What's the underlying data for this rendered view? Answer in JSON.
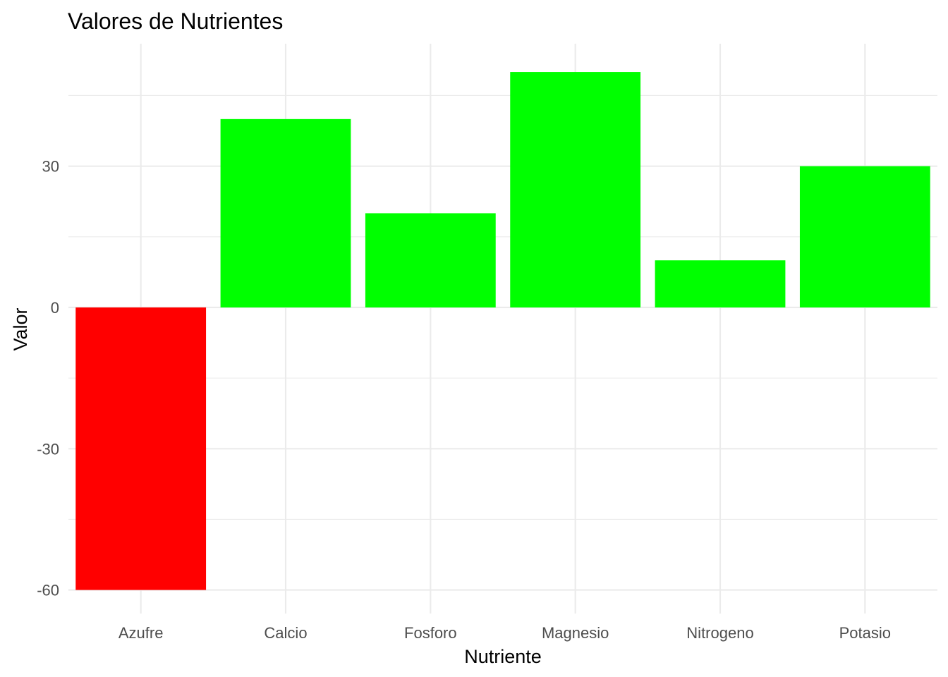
{
  "chart_data": {
    "type": "bar",
    "title": "Valores de Nutrientes",
    "xlabel": "Nutriente",
    "ylabel": "Valor",
    "categories": [
      "Azufre",
      "Calcio",
      "Fosforo",
      "Magnesio",
      "Nitrogeno",
      "Potasio"
    ],
    "values": [
      -60,
      40,
      20,
      50,
      10,
      30
    ],
    "ylim": [
      -65,
      56
    ],
    "yticks": [
      -60,
      -30,
      0,
      30
    ],
    "grid": true,
    "legend": "none",
    "colors": {
      "positive": "#00ff00",
      "negative": "#ff0000"
    }
  }
}
